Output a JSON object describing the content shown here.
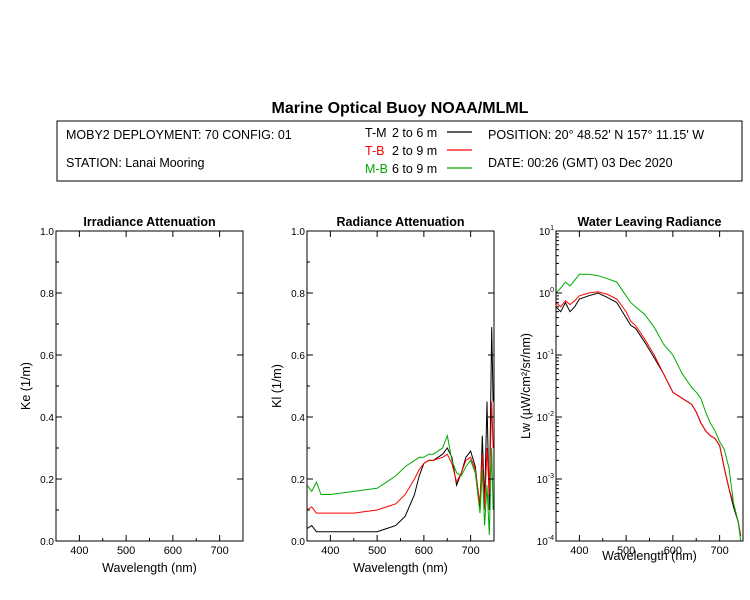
{
  "header": {
    "title": "Marine Optical Buoy NOAA/MLML",
    "deployment": "MOBY2 DEPLOYMENT: 70 CONFIG: 01",
    "station": "STATION: Lanai Mooring",
    "position": "POSITION: 20° 48.52' N   157° 11.15' W",
    "date": "DATE: 00:26 (GMT) 03 Dec 2020",
    "legend": [
      {
        "key": "T-M",
        "range": "2 to 6  m",
        "color": "#000000"
      },
      {
        "key": "T-B",
        "range": "2 to 9  m",
        "color": "#ff0000"
      },
      {
        "key": "M-B",
        "range": "6 to 9  m",
        "color": "#00aa00"
      }
    ]
  },
  "chart_data": [
    {
      "type": "line",
      "title": "Irradiance Attenuation",
      "xlabel": "Wavelength (nm)",
      "ylabel": "Ke  (1/m)",
      "xlim": [
        350,
        750
      ],
      "ylim": [
        0,
        1
      ],
      "xticks": [
        "400",
        "500",
        "600",
        "700"
      ],
      "yticks": [
        "0.0",
        "0.2",
        "0.4",
        "0.6",
        "0.8",
        "1.0"
      ],
      "series": []
    },
    {
      "type": "line",
      "title": "Radiance Attenuation",
      "xlabel": "Wavelength (nm)",
      "ylabel": "Kl  (1/m)",
      "xlim": [
        350,
        750
      ],
      "ylim": [
        0,
        1
      ],
      "xticks": [
        "400",
        "500",
        "600",
        "700"
      ],
      "yticks": [
        "0.0",
        "0.2",
        "0.4",
        "0.6",
        "0.8",
        "1.0"
      ],
      "series": [
        {
          "color": "#000000",
          "x": [
            350,
            360,
            370,
            380,
            400,
            450,
            500,
            520,
            540,
            560,
            580,
            590,
            600,
            610,
            620,
            640,
            650,
            660,
            670,
            680,
            690,
            700,
            710,
            720,
            725,
            730,
            735,
            740,
            745,
            748
          ],
          "y": [
            0.04,
            0.05,
            0.03,
            0.03,
            0.03,
            0.03,
            0.03,
            0.04,
            0.05,
            0.08,
            0.15,
            0.21,
            0.25,
            0.26,
            0.26,
            0.28,
            0.3,
            0.27,
            0.18,
            0.22,
            0.27,
            0.29,
            0.24,
            0.1,
            0.34,
            0.12,
            0.45,
            0.1,
            0.69,
            0.45
          ]
        },
        {
          "color": "#ff0000",
          "x": [
            350,
            360,
            370,
            380,
            400,
            450,
            500,
            520,
            540,
            560,
            580,
            590,
            600,
            610,
            620,
            640,
            650,
            660,
            670,
            680,
            690,
            700,
            710,
            720,
            725,
            730,
            735,
            740,
            745,
            748
          ],
          "y": [
            0.1,
            0.11,
            0.09,
            0.09,
            0.09,
            0.09,
            0.1,
            0.11,
            0.12,
            0.15,
            0.2,
            0.23,
            0.25,
            0.26,
            0.26,
            0.27,
            0.28,
            0.25,
            0.19,
            0.22,
            0.26,
            0.27,
            0.23,
            0.12,
            0.28,
            0.1,
            0.3,
            0.15,
            0.45,
            0.3
          ]
        },
        {
          "color": "#00aa00",
          "x": [
            350,
            360,
            370,
            380,
            400,
            450,
            500,
            520,
            540,
            560,
            580,
            590,
            600,
            610,
            620,
            640,
            650,
            660,
            670,
            680,
            690,
            700,
            710,
            720,
            725,
            730,
            735,
            740,
            745,
            748
          ],
          "y": [
            0.18,
            0.16,
            0.19,
            0.15,
            0.15,
            0.16,
            0.17,
            0.19,
            0.21,
            0.24,
            0.26,
            0.27,
            0.27,
            0.28,
            0.28,
            0.3,
            0.34,
            0.26,
            0.22,
            0.21,
            0.24,
            0.26,
            0.22,
            0.09,
            0.23,
            0.05,
            0.18,
            0.02,
            0.3,
            0.1
          ]
        }
      ]
    },
    {
      "type": "line",
      "title": "Water Leaving Radiance",
      "xlabel": "Wavelength (nm)",
      "ylabel": "Lw  (µW/cm²/sr/nm)",
      "xlim": [
        350,
        750
      ],
      "ylim": [
        0.0001,
        10
      ],
      "yscale": "log",
      "xticks": [
        "400",
        "500",
        "600",
        "700"
      ],
      "series": [
        {
          "color": "#000000",
          "x": [
            350,
            360,
            370,
            380,
            390,
            400,
            420,
            440,
            460,
            480,
            500,
            510,
            520,
            540,
            560,
            580,
            600,
            620,
            640,
            650,
            660,
            670,
            680,
            690,
            700,
            710,
            720,
            730,
            740,
            745
          ],
          "y": [
            0.6,
            0.5,
            0.7,
            0.5,
            0.6,
            0.8,
            0.9,
            1.0,
            0.85,
            0.7,
            0.4,
            0.3,
            0.27,
            0.16,
            0.09,
            0.05,
            0.025,
            0.02,
            0.016,
            0.012,
            0.008,
            0.006,
            0.005,
            0.0045,
            0.0035,
            0.0015,
            0.0007,
            0.00035,
            0.0002,
            0.00012
          ]
        },
        {
          "color": "#ff0000",
          "x": [
            350,
            360,
            370,
            380,
            390,
            400,
            420,
            440,
            460,
            480,
            500,
            510,
            520,
            540,
            560,
            580,
            600,
            620,
            640,
            650,
            660,
            670,
            680,
            690,
            700,
            710,
            720,
            730,
            740,
            745
          ],
          "y": [
            0.7,
            0.6,
            0.75,
            0.65,
            0.75,
            0.9,
            1.0,
            1.05,
            0.95,
            0.8,
            0.5,
            0.35,
            0.3,
            0.18,
            0.1,
            0.05,
            0.025,
            0.02,
            0.016,
            0.012,
            0.008,
            0.006,
            0.005,
            0.0045,
            0.0035,
            0.0015,
            0.0007,
            0.0004,
            0.0002,
            0.00012
          ]
        },
        {
          "color": "#00aa00",
          "x": [
            350,
            360,
            370,
            380,
            390,
            400,
            420,
            440,
            460,
            480,
            500,
            510,
            520,
            540,
            560,
            580,
            600,
            620,
            640,
            650,
            660,
            670,
            680,
            690,
            700,
            710,
            720,
            730,
            740,
            745
          ],
          "y": [
            1.0,
            1.2,
            1.5,
            1.3,
            1.6,
            2.0,
            2.0,
            1.9,
            1.7,
            1.5,
            0.9,
            0.7,
            0.6,
            0.45,
            0.28,
            0.15,
            0.1,
            0.05,
            0.03,
            0.025,
            0.02,
            0.012,
            0.008,
            0.006,
            0.004,
            0.003,
            0.0015,
            0.0004,
            0.0002,
            0.0001
          ]
        }
      ]
    }
  ]
}
